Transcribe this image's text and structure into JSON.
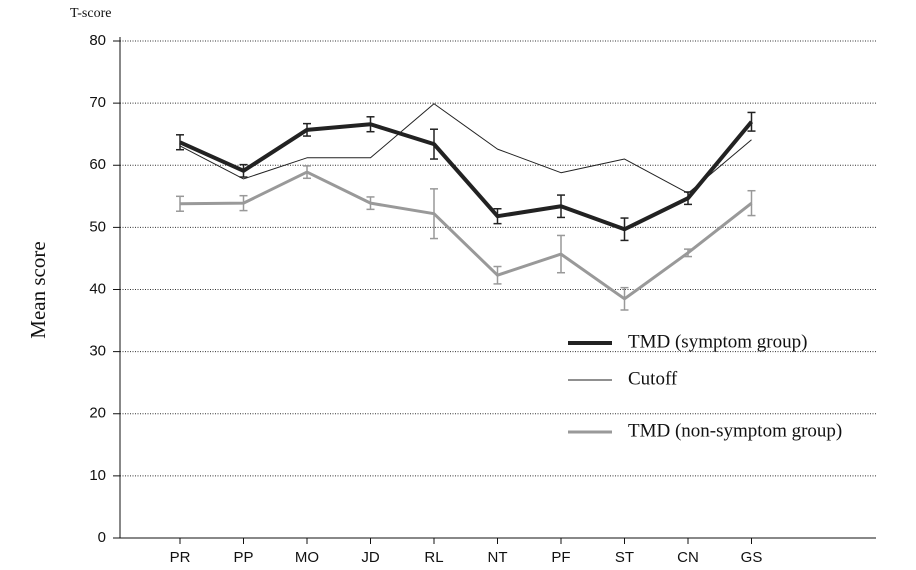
{
  "chart_data": {
    "type": "line",
    "y_unit_label": "T-score",
    "ylabel": "Mean score",
    "categories": [
      "PR",
      "PP",
      "MO",
      "JD",
      "RL",
      "NT",
      "PF",
      "ST",
      "CN",
      "GS"
    ],
    "series": [
      {
        "name": "TMD (symptom group)",
        "color": "#222222",
        "width": 4,
        "values": [
          63.7,
          59.1,
          65.7,
          66.6,
          63.4,
          51.8,
          53.4,
          49.7,
          54.7,
          67.0
        ],
        "errors": [
          1.2,
          1.0,
          1.0,
          1.2,
          2.4,
          1.2,
          1.8,
          1.8,
          1.0,
          1.5
        ]
      },
      {
        "name": "Cutoff",
        "color": "#222222",
        "width": 1,
        "values": [
          63.1,
          57.8,
          61.2,
          61.2,
          69.9,
          62.6,
          58.8,
          61.0,
          55.5,
          64.1
        ]
      },
      {
        "name": "TMD (non-symptom group)",
        "color": "#999999",
        "width": 3,
        "values": [
          53.8,
          53.9,
          58.9,
          53.9,
          52.2,
          42.3,
          45.7,
          38.5,
          45.9,
          53.9
        ],
        "errors": [
          1.2,
          1.2,
          1.0,
          1.0,
          4.0,
          1.4,
          3.0,
          1.8,
          0.6,
          2.0
        ]
      }
    ],
    "ylim": [
      0,
      80
    ],
    "yticks": [
      0,
      10,
      20,
      30,
      40,
      50,
      60,
      70,
      80
    ],
    "grid": true,
    "legend": "lower right"
  }
}
